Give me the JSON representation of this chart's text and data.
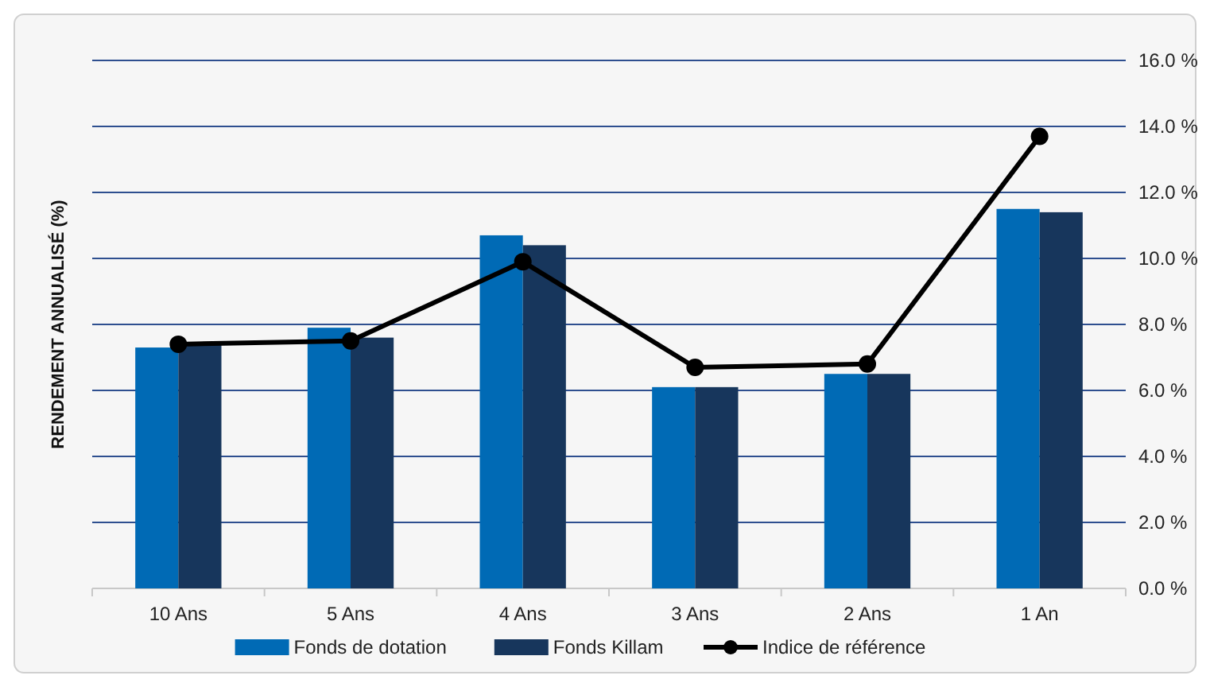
{
  "chart_data": {
    "type": "bar",
    "ylabel": "RENDEMENT ANNUALISÉ (%)",
    "categories": [
      "10 Ans",
      "5 Ans",
      "4 Ans",
      "3 Ans",
      "2 Ans",
      "1 An"
    ],
    "series": [
      {
        "name": "Fonds de dotation",
        "color": "#006ab5",
        "values": [
          7.3,
          7.9,
          10.7,
          6.1,
          6.5,
          11.5
        ]
      },
      {
        "name": "Fonds Killam",
        "color": "#17365c",
        "values": [
          7.4,
          7.6,
          10.4,
          6.1,
          6.5,
          11.4
        ]
      },
      {
        "name": "Indice de référence",
        "type": "line",
        "color": "#000000",
        "marker": "circle",
        "values": [
          7.4,
          7.5,
          9.9,
          6.7,
          6.8,
          13.7
        ]
      }
    ],
    "ylim": [
      0,
      16
    ],
    "yticks": [
      {
        "value": 0,
        "label": "0.0 %"
      },
      {
        "value": 2,
        "label": "2.0 %"
      },
      {
        "value": 4,
        "label": "4.0 %"
      },
      {
        "value": 6,
        "label": "6.0 %"
      },
      {
        "value": 8,
        "label": "8.0 %"
      },
      {
        "value": 10,
        "label": "10.0 %"
      },
      {
        "value": 12,
        "label": "12.0 %"
      },
      {
        "value": 14,
        "label": "14.0 %"
      },
      {
        "value": 16,
        "label": "16.0 %"
      }
    ],
    "grid": "y",
    "legend": "bottom"
  }
}
